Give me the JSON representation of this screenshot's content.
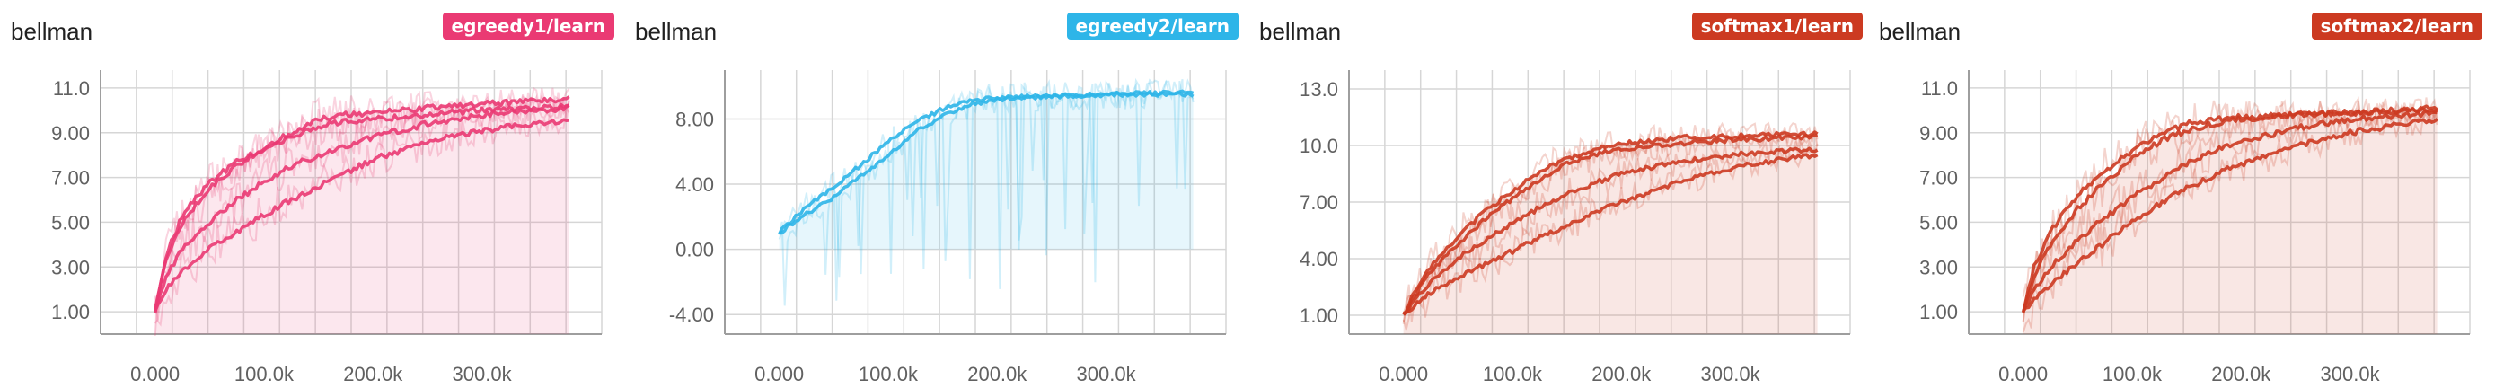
{
  "chart_data": [
    {
      "type": "line",
      "title": "bellman",
      "run": "egreedy1/learn",
      "color": "#ea3a73",
      "x_ticks": [
        0,
        100000,
        200000,
        300000
      ],
      "x_tick_labels": [
        "0.000",
        "100.0k",
        "200.0k",
        "300.0k"
      ],
      "y_ticks": [
        1,
        3,
        5,
        7,
        9,
        11
      ],
      "y_tick_labels": [
        "1.00",
        "3.00",
        "5.00",
        "7.00",
        "9.00",
        "11.0"
      ],
      "xlim": [
        -50000,
        410000
      ],
      "ylim": [
        0.0,
        11.8
      ],
      "grid": true,
      "smoothed_series": [
        {
          "x": [
            0,
            10000,
            25000,
            50000,
            75000,
            100000,
            125000,
            150000,
            175000,
            200000,
            250000,
            300000,
            350000,
            380000
          ],
          "y": [
            1.0,
            3.5,
            5.3,
            6.8,
            7.7,
            8.3,
            8.8,
            9.3,
            9.5,
            9.6,
            9.8,
            10.0,
            10.1,
            10.2
          ]
        },
        {
          "x": [
            0,
            10000,
            25000,
            50000,
            75000,
            100000,
            125000,
            150000,
            175000,
            200000,
            250000,
            300000,
            350000,
            380000
          ],
          "y": [
            1.0,
            3.3,
            5.0,
            6.5,
            7.5,
            8.3,
            9.0,
            9.6,
            9.8,
            9.9,
            10.1,
            10.3,
            10.4,
            10.5
          ]
        },
        {
          "x": [
            0,
            10000,
            25000,
            50000,
            75000,
            100000,
            125000,
            150000,
            175000,
            200000,
            250000,
            300000,
            350000,
            380000
          ],
          "y": [
            1.0,
            2.5,
            3.8,
            5.0,
            6.0,
            6.8,
            7.5,
            8.0,
            8.4,
            8.8,
            9.4,
            9.8,
            10.0,
            10.1
          ]
        },
        {
          "x": [
            0,
            10000,
            25000,
            50000,
            75000,
            100000,
            125000,
            150000,
            175000,
            200000,
            250000,
            300000,
            350000,
            380000
          ],
          "y": [
            1.0,
            2.0,
            2.8,
            3.8,
            4.6,
            5.3,
            6.0,
            6.6,
            7.2,
            7.8,
            8.6,
            9.1,
            9.4,
            9.6
          ]
        }
      ]
    },
    {
      "type": "line",
      "title": "bellman",
      "run": "egreedy2/learn",
      "color": "#2eb5e8",
      "x_ticks": [
        0,
        100000,
        200000,
        300000
      ],
      "x_tick_labels": [
        "0.000",
        "100.0k",
        "200.0k",
        "300.0k"
      ],
      "y_ticks": [
        -4,
        0,
        4,
        8
      ],
      "y_tick_labels": [
        "-4.00",
        "0.00",
        "4.00",
        "8.00"
      ],
      "xlim": [
        -50000,
        410000
      ],
      "ylim": [
        -5.2,
        11.0
      ],
      "grid": true,
      "smoothed_series": [
        {
          "x": [
            0,
            10000,
            25000,
            50000,
            75000,
            100000,
            125000,
            150000,
            175000,
            200000,
            250000,
            300000,
            350000,
            380000
          ],
          "y": [
            1.0,
            1.7,
            2.6,
            3.8,
            5.2,
            6.6,
            7.8,
            8.6,
            9.1,
            9.3,
            9.4,
            9.5,
            9.5,
            9.5
          ]
        },
        {
          "x": [
            0,
            10000,
            25000,
            50000,
            75000,
            100000,
            125000,
            150000,
            175000,
            200000,
            250000,
            300000,
            350000,
            380000
          ],
          "y": [
            1.0,
            1.5,
            2.2,
            3.2,
            4.5,
            5.8,
            7.2,
            8.2,
            8.9,
            9.2,
            9.4,
            9.5,
            9.6,
            9.6
          ]
        }
      ]
    },
    {
      "type": "line",
      "title": "bellman",
      "run": "softmax1/learn",
      "color": "#cc3a21",
      "x_ticks": [
        0,
        100000,
        200000,
        300000
      ],
      "x_tick_labels": [
        "0.000",
        "100.0k",
        "200.0k",
        "300.0k"
      ],
      "y_ticks": [
        1,
        4,
        7,
        10,
        13
      ],
      "y_tick_labels": [
        "1.00",
        "4.00",
        "7.00",
        "10.0",
        "13.0"
      ],
      "xlim": [
        -50000,
        410000
      ],
      "ylim": [
        0.0,
        14.0
      ],
      "grid": true,
      "smoothed_series": [
        {
          "x": [
            0,
            10000,
            25000,
            50000,
            75000,
            100000,
            125000,
            150000,
            175000,
            200000,
            250000,
            300000,
            350000,
            380000
          ],
          "y": [
            1.0,
            2.2,
            3.6,
            5.2,
            6.5,
            7.6,
            8.6,
            9.3,
            9.8,
            10.1,
            10.4,
            10.5,
            10.6,
            10.6
          ]
        },
        {
          "x": [
            0,
            10000,
            25000,
            50000,
            75000,
            100000,
            125000,
            150000,
            175000,
            200000,
            250000,
            300000,
            350000,
            380000
          ],
          "y": [
            1.0,
            2.0,
            3.3,
            4.8,
            6.1,
            7.2,
            8.2,
            9.0,
            9.5,
            9.8,
            10.1,
            10.3,
            10.4,
            10.5
          ]
        },
        {
          "x": [
            0,
            10000,
            25000,
            50000,
            75000,
            100000,
            125000,
            150000,
            175000,
            200000,
            250000,
            300000,
            350000,
            380000
          ],
          "y": [
            1.0,
            1.8,
            2.8,
            4.0,
            5.0,
            5.9,
            6.7,
            7.4,
            8.0,
            8.5,
            9.1,
            9.5,
            9.7,
            9.8
          ]
        },
        {
          "x": [
            0,
            10000,
            25000,
            50000,
            75000,
            100000,
            125000,
            150000,
            175000,
            200000,
            250000,
            300000,
            350000,
            380000
          ],
          "y": [
            1.0,
            1.5,
            2.2,
            3.0,
            3.7,
            4.4,
            5.1,
            5.8,
            6.4,
            7.0,
            8.0,
            8.8,
            9.3,
            9.5
          ]
        }
      ]
    },
    {
      "type": "line",
      "title": "bellman",
      "run": "softmax2/learn",
      "color": "#cc3a21",
      "x_ticks": [
        0,
        100000,
        200000,
        300000
      ],
      "x_tick_labels": [
        "0.000",
        "100.0k",
        "200.0k",
        "300.0k"
      ],
      "y_ticks": [
        1,
        3,
        5,
        7,
        9,
        11
      ],
      "y_tick_labels": [
        "1.00",
        "3.00",
        "5.00",
        "7.00",
        "9.00",
        "11.0"
      ],
      "xlim": [
        -50000,
        410000
      ],
      "ylim": [
        0.0,
        11.8
      ],
      "grid": true,
      "smoothed_series": [
        {
          "x": [
            0,
            10000,
            25000,
            50000,
            75000,
            100000,
            125000,
            150000,
            175000,
            200000,
            250000,
            300000,
            350000,
            380000
          ],
          "y": [
            1.0,
            3.0,
            4.6,
            6.2,
            7.3,
            8.2,
            8.9,
            9.4,
            9.6,
            9.7,
            9.8,
            9.9,
            10.0,
            10.0
          ]
        },
        {
          "x": [
            0,
            10000,
            25000,
            50000,
            75000,
            100000,
            125000,
            150000,
            175000,
            200000,
            250000,
            300000,
            350000,
            380000
          ],
          "y": [
            1.0,
            2.6,
            4.0,
            5.6,
            6.8,
            7.8,
            8.6,
            9.1,
            9.4,
            9.6,
            9.8,
            9.9,
            10.0,
            10.1
          ]
        },
        {
          "x": [
            0,
            10000,
            25000,
            50000,
            75000,
            100000,
            125000,
            150000,
            175000,
            200000,
            250000,
            300000,
            350000,
            380000
          ],
          "y": [
            1.0,
            2.0,
            3.0,
            4.2,
            5.2,
            6.1,
            6.9,
            7.6,
            8.2,
            8.6,
            9.2,
            9.6,
            9.8,
            9.9
          ]
        },
        {
          "x": [
            0,
            10000,
            25000,
            50000,
            75000,
            100000,
            125000,
            150000,
            175000,
            200000,
            250000,
            300000,
            350000,
            380000
          ],
          "y": [
            1.0,
            1.5,
            2.2,
            3.2,
            4.1,
            5.0,
            5.8,
            6.5,
            7.1,
            7.6,
            8.4,
            9.0,
            9.4,
            9.6
          ]
        }
      ]
    }
  ]
}
